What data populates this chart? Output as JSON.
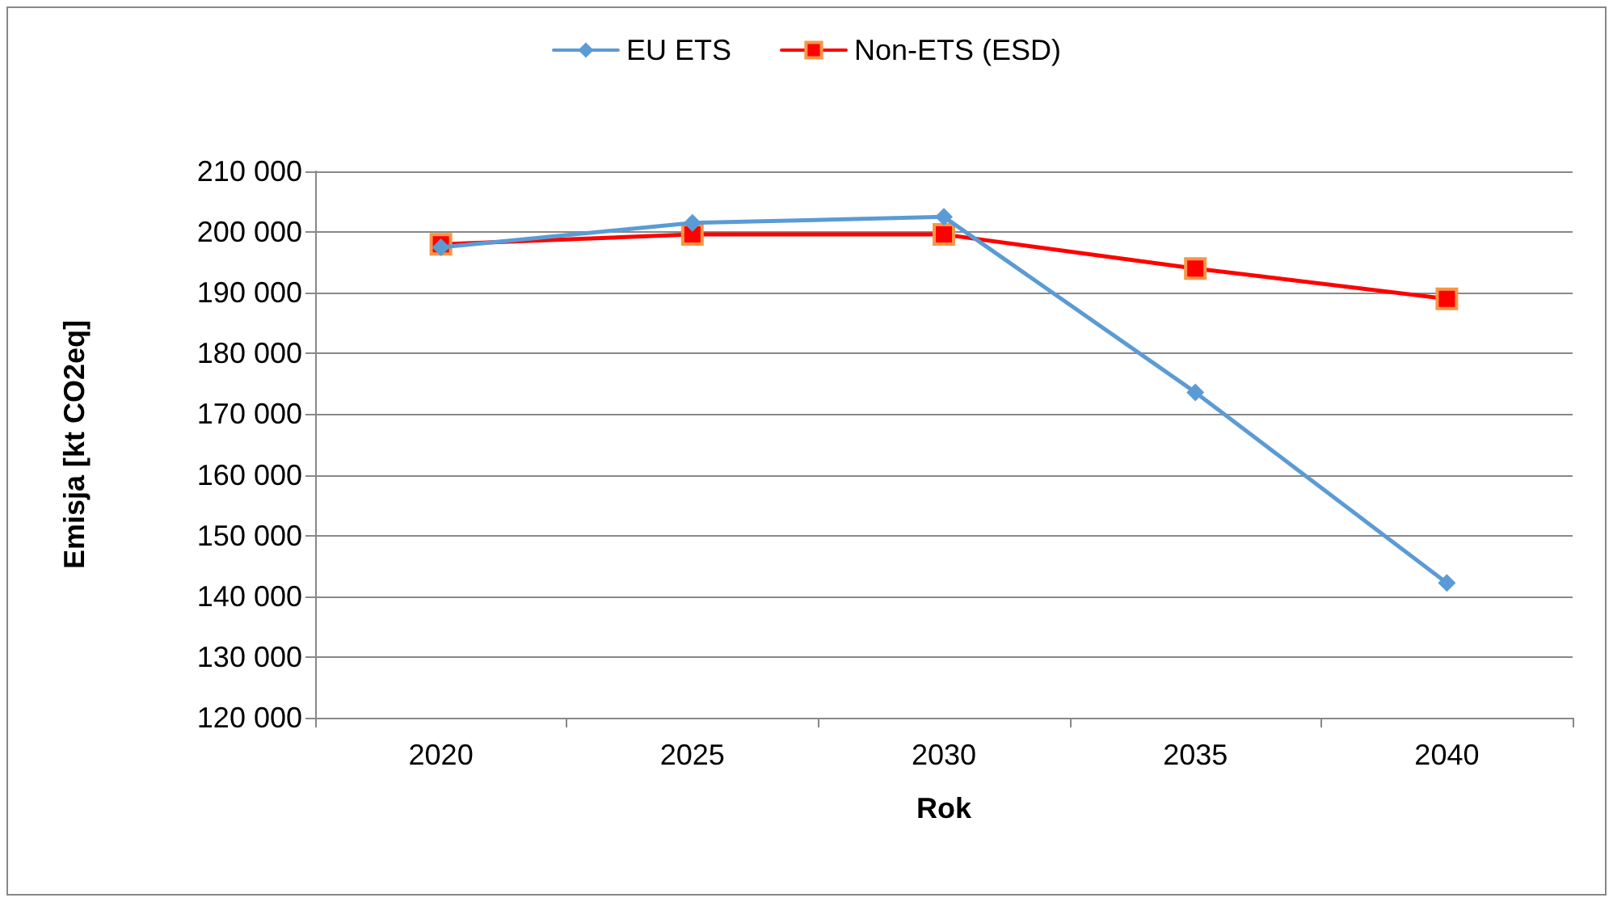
{
  "chart_data": {
    "type": "line",
    "xlabel": "Rok",
    "ylabel": "Emisja [kt CO2eq]",
    "categories": [
      "2020",
      "2025",
      "2030",
      "2035",
      "2040"
    ],
    "series": [
      {
        "name": "EU ETS",
        "color": "#5b9bd5",
        "marker": "diamond",
        "values": [
          197500,
          201500,
          202500,
          173600,
          142200
        ]
      },
      {
        "name": "Non-ETS (ESD)",
        "color": "#ff0000",
        "marker": "square",
        "values": [
          198000,
          199600,
          199600,
          194000,
          189000
        ]
      }
    ],
    "ylim": [
      120000,
      210000
    ],
    "yticks": [
      {
        "value": 120000,
        "label": "120 000"
      },
      {
        "value": 130000,
        "label": "130 000"
      },
      {
        "value": 140000,
        "label": "140 000"
      },
      {
        "value": 150000,
        "label": "150 000"
      },
      {
        "value": 160000,
        "label": "160 000"
      },
      {
        "value": 170000,
        "label": "170 000"
      },
      {
        "value": 180000,
        "label": "180 000"
      },
      {
        "value": 190000,
        "label": "190 000"
      },
      {
        "value": 200000,
        "label": "200 000"
      },
      {
        "value": 210000,
        "label": "210 000"
      }
    ],
    "grid": "y",
    "legend": "top",
    "line_style": "solid"
  }
}
